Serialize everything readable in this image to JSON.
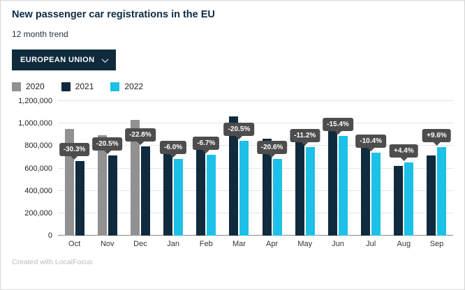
{
  "header": {
    "title": "New passenger car registrations in the EU",
    "subtitle": "12 month trend"
  },
  "dropdown": {
    "label": "EUROPEAN UNION"
  },
  "footer": {
    "credit": "Created with LocalFocus"
  },
  "chart_data": {
    "type": "bar",
    "title": "New passenger car registrations in the EU",
    "xlabel": "",
    "ylabel": "",
    "categories": [
      "Oct",
      "Nov",
      "Dec",
      "Jan",
      "Feb",
      "Mar",
      "Apr",
      "May",
      "Jun",
      "Jul",
      "Aug",
      "Sep"
    ],
    "series": [
      {
        "name": "2020",
        "color": "#919191",
        "values": [
          954000,
          897000,
          1031000,
          null,
          null,
          null,
          null,
          null,
          null,
          null,
          null,
          null
        ]
      },
      {
        "name": "2021",
        "color": "#102a3e",
        "values": [
          665000,
          713000,
          795000,
          726000,
          771000,
          1062000,
          862000,
          891000,
          1048000,
          824000,
          622000,
          718000
        ]
      },
      {
        "name": "2022",
        "color": "#1dc0e6",
        "values": [
          null,
          null,
          null,
          683000,
          719000,
          844000,
          685000,
          792000,
          887000,
          738000,
          650000,
          787000
        ]
      }
    ],
    "labels": [
      "-30.3%",
      "-20.5%",
      "-22.8%",
      "-6.0%",
      "-6.7%",
      "-20.5%",
      "-20.6%",
      "-11.2%",
      "-15.4%",
      "-10.4%",
      "+4.4%",
      "+9.6%"
    ],
    "ylim": [
      0,
      1200000
    ],
    "yticks": [
      {
        "value": 0,
        "label": "0"
      },
      {
        "value": 200000,
        "label": "200,000"
      },
      {
        "value": 400000,
        "label": "400,000"
      },
      {
        "value": 600000,
        "label": "600,000"
      },
      {
        "value": 800000,
        "label": "800,000"
      },
      {
        "value": 1000000,
        "label": "1,000,000"
      },
      {
        "value": 1200000,
        "label": "1,200,000"
      }
    ],
    "grid": true,
    "legend_position": "top"
  }
}
